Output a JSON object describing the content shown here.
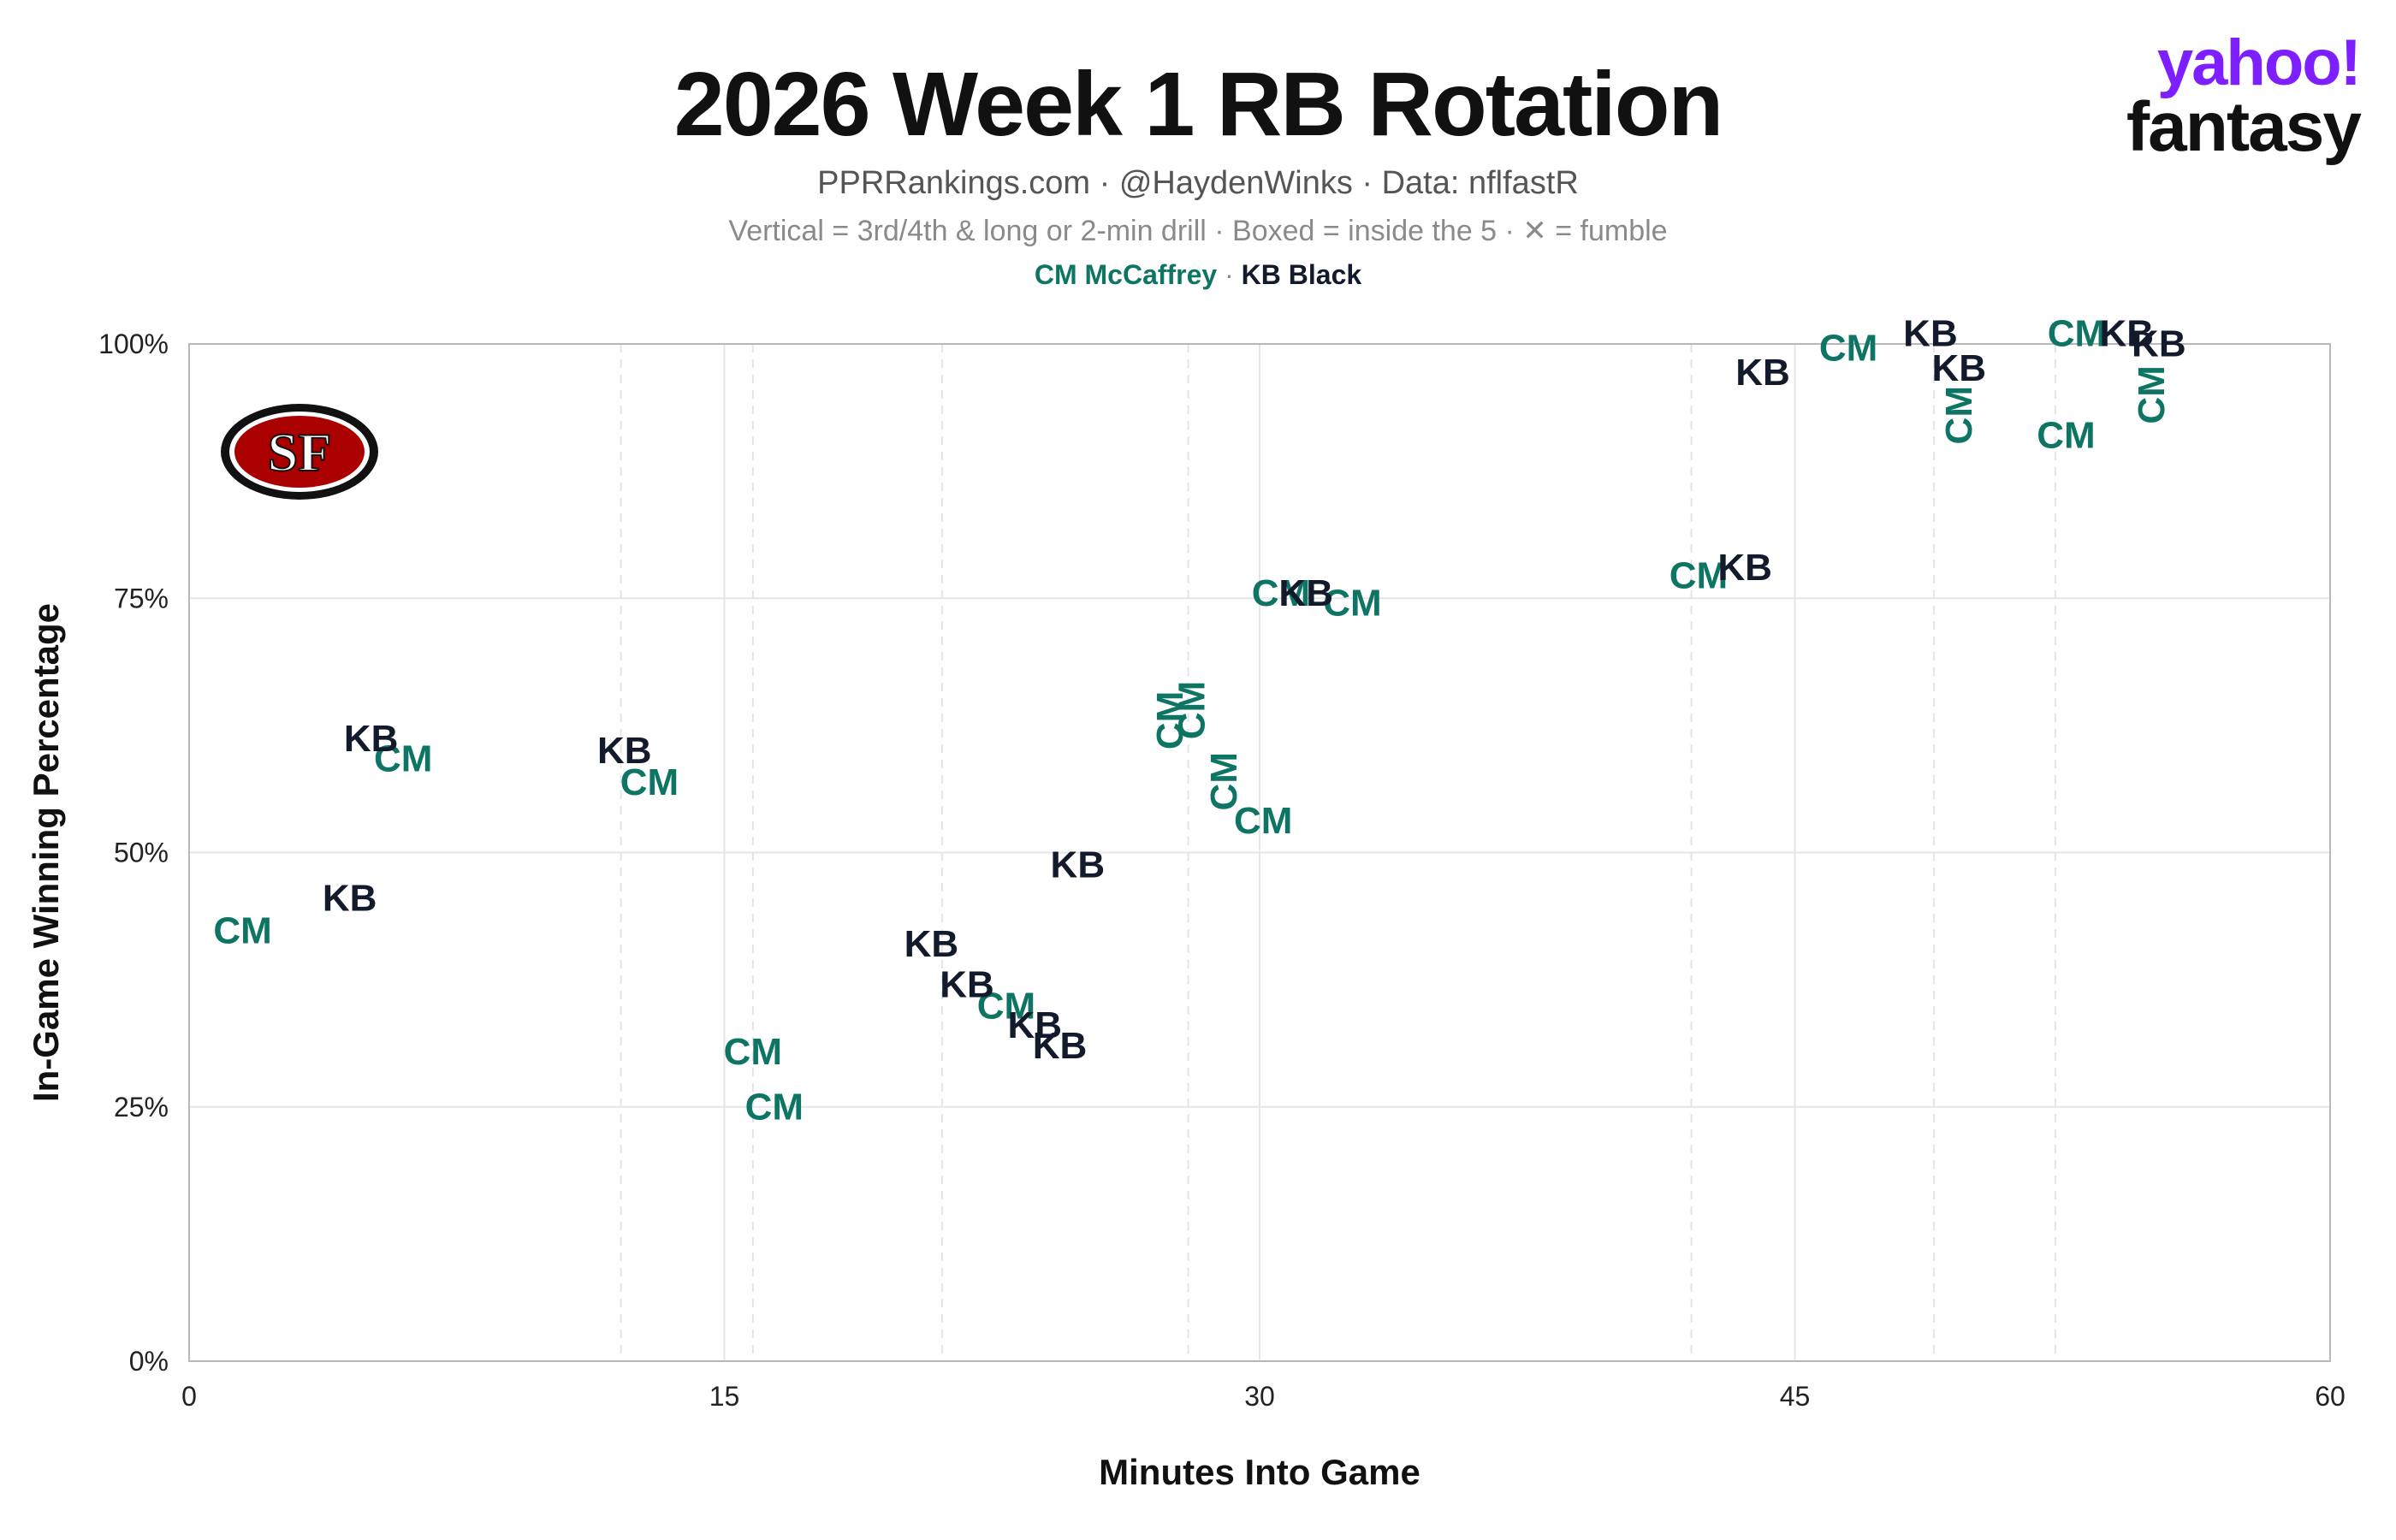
{
  "header": {
    "title": "2026 Week 1 RB Rotation",
    "subtitle": "PPRRankings.com · @HaydenWinks · Data: nflfastR",
    "note": "Vertical = 3rd/4th & long or 2-min drill · Boxed = inside the 5 · ✕ = fumble",
    "legend_separator": "·"
  },
  "brand": {
    "line1": "yahoo!",
    "line2": "fantasy"
  },
  "team_logo": {
    "text": "SF",
    "colors": {
      "outer": "#111111",
      "ring": "#ffffff",
      "fill": "#aa0000",
      "gold": "#b3995d"
    }
  },
  "colors": {
    "mccaffrey": "#0e7564",
    "black": "#131a2c",
    "grid": "#e6e6e6",
    "axis": "#b8b8b8"
  },
  "chart_data": {
    "type": "scatter",
    "title": "2026 Week 1 RB Rotation",
    "xlabel": "Minutes Into Game",
    "ylabel": "In-Game Winning Percentage",
    "xlim": [
      0,
      60
    ],
    "ylim": [
      0,
      100
    ],
    "x_ticks": [
      "0",
      "15",
      "30",
      "45",
      "60"
    ],
    "y_ticks": [
      "0%",
      "25%",
      "50%",
      "75%",
      "100%"
    ],
    "x_tick_values": [
      0,
      15,
      30,
      45,
      60
    ],
    "y_tick_values": [
      0,
      25,
      50,
      75,
      100
    ],
    "minor_dashed_x": [
      12.1,
      15.8,
      21.1,
      28.0,
      42.1,
      48.9,
      52.3
    ],
    "legend_placement": "top-center",
    "grid": true,
    "series": [
      {
        "name": "CM McCaffrey",
        "label": "CM",
        "color": "#0e7564",
        "points": [
          {
            "x": 1.5,
            "y": 42.3,
            "vertical": false
          },
          {
            "x": 6.0,
            "y": 59.2,
            "vertical": false
          },
          {
            "x": 12.9,
            "y": 56.9,
            "vertical": false
          },
          {
            "x": 15.8,
            "y": 30.4,
            "vertical": false
          },
          {
            "x": 16.4,
            "y": 25.0,
            "vertical": false
          },
          {
            "x": 22.9,
            "y": 34.9,
            "vertical": false
          },
          {
            "x": 27.5,
            "y": 63.0,
            "vertical": true
          },
          {
            "x": 28.1,
            "y": 64.0,
            "vertical": true
          },
          {
            "x": 29.0,
            "y": 57.0,
            "vertical": true
          },
          {
            "x": 30.1,
            "y": 53.1,
            "vertical": false
          },
          {
            "x": 30.6,
            "y": 75.5,
            "vertical": false
          },
          {
            "x": 32.6,
            "y": 74.5,
            "vertical": false
          },
          {
            "x": 42.3,
            "y": 77.2,
            "vertical": false
          },
          {
            "x": 46.5,
            "y": 99.6,
            "vertical": false
          },
          {
            "x": 49.6,
            "y": 93.0,
            "vertical": true
          },
          {
            "x": 52.6,
            "y": 91.0,
            "vertical": false
          },
          {
            "x": 52.9,
            "y": 101.0,
            "vertical": false
          },
          {
            "x": 55.0,
            "y": 95.0,
            "vertical": true
          }
        ]
      },
      {
        "name": "KB Black",
        "label": "KB",
        "color": "#131a2c",
        "points": [
          {
            "x": 4.5,
            "y": 45.5,
            "vertical": false
          },
          {
            "x": 5.1,
            "y": 61.2,
            "vertical": false
          },
          {
            "x": 12.2,
            "y": 60.0,
            "vertical": false
          },
          {
            "x": 20.8,
            "y": 41.0,
            "vertical": false
          },
          {
            "x": 21.8,
            "y": 37.0,
            "vertical": false
          },
          {
            "x": 23.7,
            "y": 33.0,
            "vertical": false
          },
          {
            "x": 24.4,
            "y": 31.0,
            "vertical": false
          },
          {
            "x": 24.9,
            "y": 48.8,
            "vertical": false
          },
          {
            "x": 31.3,
            "y": 75.5,
            "vertical": false
          },
          {
            "x": 43.6,
            "y": 78.0,
            "vertical": false
          },
          {
            "x": 44.1,
            "y": 97.2,
            "vertical": false
          },
          {
            "x": 48.8,
            "y": 101.0,
            "vertical": false
          },
          {
            "x": 49.6,
            "y": 97.6,
            "vertical": false
          },
          {
            "x": 54.3,
            "y": 101.0,
            "vertical": false
          },
          {
            "x": 55.2,
            "y": 100.0,
            "vertical": false
          }
        ]
      }
    ]
  }
}
